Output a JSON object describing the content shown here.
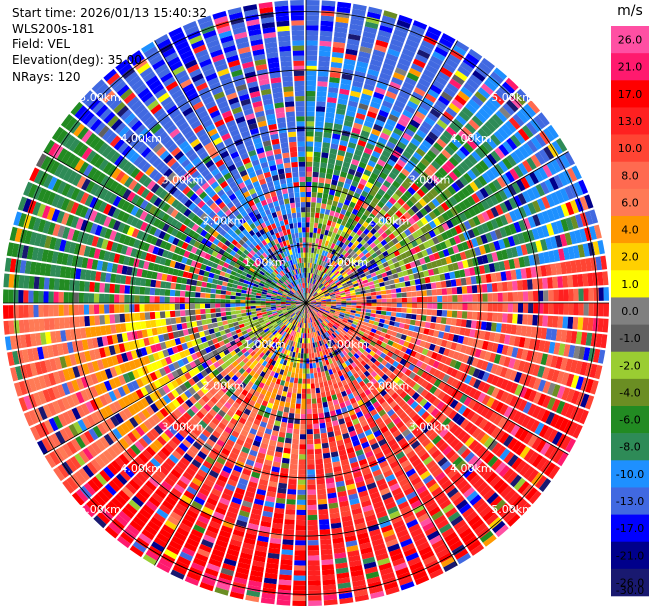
{
  "header": {
    "start_time": "Start time: 2026/01/13 15:40:32",
    "instrument": "WLS200s-181",
    "field": "Field: VEL",
    "elevation": "Elevation(deg): 35.00",
    "nrays": "NRays: 120"
  },
  "chart_data": {
    "type": "ppi",
    "field": "VEL",
    "units": "m/s",
    "nrays": 120,
    "range_rings_km": [
      1,
      2,
      3,
      4,
      5
    ],
    "ring_labels": [
      "1.00km",
      "2.00km",
      "3.00km",
      "4.00km",
      "5.00km"
    ],
    "max_range_km": 5.2,
    "colorbar": {
      "unit_label": "m/s",
      "ticks": [
        "26.0",
        "21.0",
        "17.0",
        "13.0",
        "10.0",
        "8.0",
        "6.0",
        "4.0",
        "2.0",
        "1.0",
        "0.0",
        "-1.0",
        "-2.0",
        "-4.0",
        "-6.0",
        "-8.0",
        "-10.0",
        "-13.0",
        "-17.0",
        "-21.0",
        "-26.0",
        "-30.0"
      ],
      "colors": [
        "#ff4fa3",
        "#ff1a6e",
        "#ff0000",
        "#ff2020",
        "#ff4433",
        "#ff6a50",
        "#ff7a55",
        "#ff9900",
        "#ffd000",
        "#ffff00",
        "#808080",
        "#606060",
        "#9acd32",
        "#6b8e23",
        "#228b22",
        "#2e8b57",
        "#1e90ff",
        "#4169e1",
        "#0000ff",
        "#00008b",
        "#191970"
      ]
    },
    "sector_trends": [
      {
        "az_from": 0,
        "az_to": 40,
        "near": 0.0,
        "far": -17.0
      },
      {
        "az_from": 40,
        "az_to": 80,
        "near": 2.0,
        "far": -13.0
      },
      {
        "az_from": 80,
        "az_to": 110,
        "near": 4.0,
        "far": 10.0
      },
      {
        "az_from": 110,
        "az_to": 180,
        "near": 6.0,
        "far": 13.0
      },
      {
        "az_from": 180,
        "az_to": 230,
        "near": -2.0,
        "far": 17.0
      },
      {
        "az_from": 230,
        "az_to": 270,
        "near": -6.0,
        "far": 8.0
      },
      {
        "az_from": 270,
        "az_to": 310,
        "near": -8.0,
        "far": -8.0
      },
      {
        "az_from": 310,
        "az_to": 360,
        "near": -10.0,
        "far": -17.0
      }
    ]
  }
}
